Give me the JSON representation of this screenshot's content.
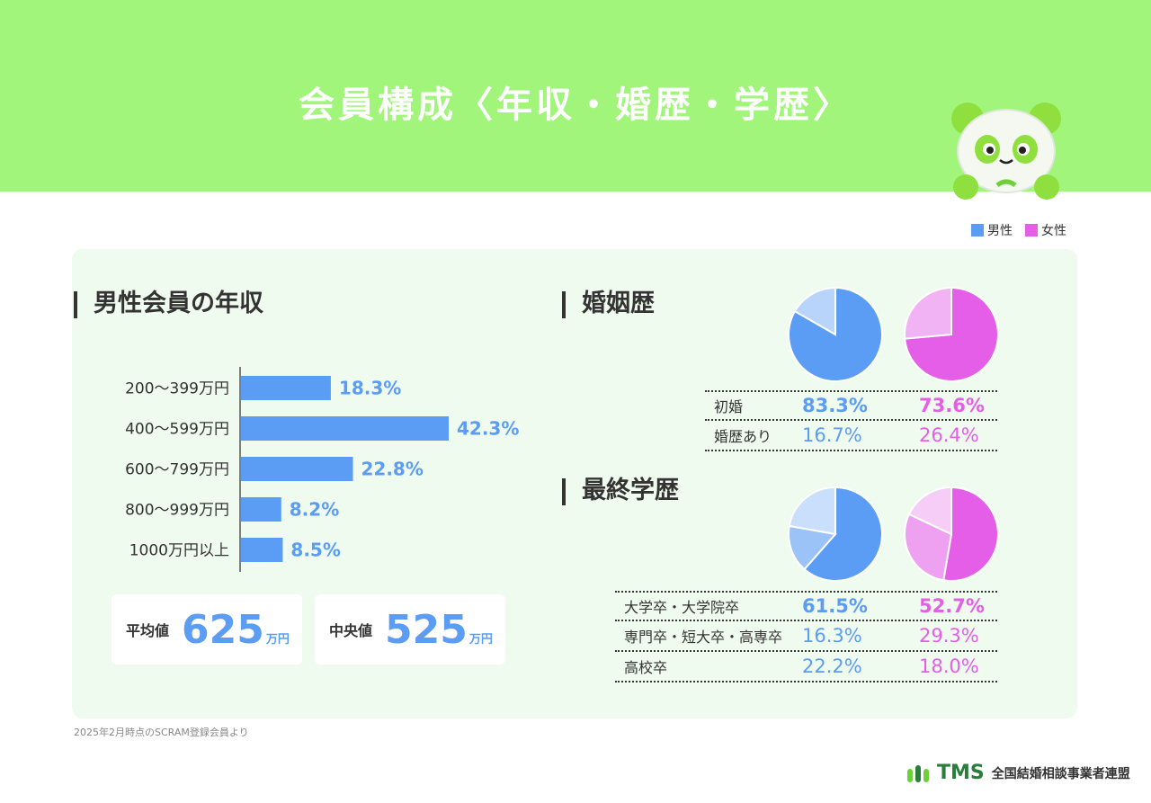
{
  "page": {
    "title": "会員構成〈年収・婚歴・学歴〉",
    "footnote": "2025年2月時点のSCRAM登録会員より"
  },
  "legend": {
    "male": "男性",
    "female": "女性",
    "male_color": "#5b9cf5",
    "female_color": "#e45ee8"
  },
  "income": {
    "heading": "男性会員の年収",
    "average_label": "平均値",
    "average_value": "625",
    "median_label": "中央値",
    "median_value": "525",
    "unit": "万円"
  },
  "marriage": {
    "heading": "婚姻歴",
    "rows": [
      {
        "label": "初婚",
        "male": "83.3%",
        "female": "73.6%"
      },
      {
        "label": "婚歴あり",
        "male": "16.7%",
        "female": "26.4%"
      }
    ]
  },
  "education": {
    "heading": "最終学歴",
    "rows": [
      {
        "label": "大学卒・大学院卒",
        "male": "61.5%",
        "female": "52.7%"
      },
      {
        "label": "専門卒・短大卒・高専卒",
        "male": "16.3%",
        "female": "29.3%"
      },
      {
        "label": "高校卒",
        "male": "22.2%",
        "female": "18.0%"
      }
    ]
  },
  "footer": {
    "brand": "TMS",
    "org": "全国結婚相談事業者連盟"
  },
  "chart_data": [
    {
      "type": "bar",
      "orientation": "horizontal",
      "categories": [
        "200〜399万円",
        "400〜599万円",
        "600〜799万円",
        "800〜999万円",
        "1000万円以上"
      ],
      "values": [
        18.3,
        42.3,
        22.8,
        8.2,
        8.5
      ],
      "value_labels": [
        "18.3%",
        "42.3%",
        "22.8%",
        "8.2%",
        "8.5%"
      ],
      "color": "#5b9cf5"
    },
    {
      "type": "pie",
      "series": "男性",
      "labels": [
        "初婚",
        "婚歴あり"
      ],
      "values": [
        83.3,
        16.7
      ],
      "colors": [
        "#5b9cf5",
        "#b9d4fa"
      ]
    },
    {
      "type": "pie",
      "series": "女性",
      "labels": [
        "初婚",
        "婚歴あり"
      ],
      "values": [
        73.6,
        26.4
      ],
      "colors": [
        "#e45ee8",
        "#f2b3f4"
      ]
    },
    {
      "type": "pie",
      "series": "男性",
      "labels": [
        "大学卒・大学院卒",
        "専門卒・短大卒・高専卒",
        "高校卒"
      ],
      "values": [
        61.5,
        16.3,
        22.2
      ],
      "colors": [
        "#5b9cf5",
        "#9cc3f8",
        "#cadffb"
      ]
    },
    {
      "type": "pie",
      "series": "女性",
      "labels": [
        "大学卒・大学院卒",
        "専門卒・短大卒・高専卒",
        "高校卒"
      ],
      "values": [
        52.7,
        29.3,
        18.0
      ],
      "colors": [
        "#e45ee8",
        "#eda1f0",
        "#f5cdf7"
      ]
    }
  ]
}
